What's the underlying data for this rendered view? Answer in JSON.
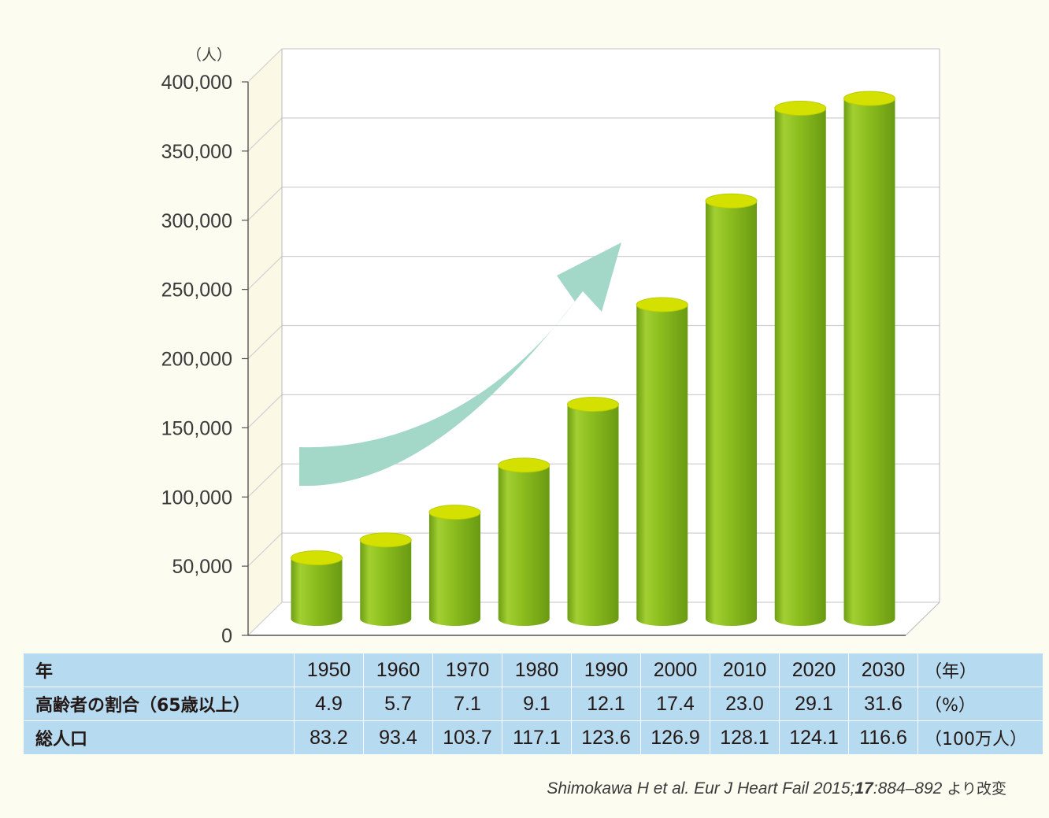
{
  "chart_data": {
    "type": "bar",
    "categories": [
      "1950",
      "1960",
      "1970",
      "1980",
      "1990",
      "2000",
      "2010",
      "2020",
      "2030"
    ],
    "values": [
      44000,
      57000,
      77000,
      111000,
      155000,
      227000,
      302000,
      369000,
      376000
    ],
    "y_unit": "（人）",
    "yticks": [
      "0",
      "50,000",
      "100,000",
      "150,000",
      "200,000",
      "250,000",
      "300,000",
      "350,000",
      "400,000"
    ],
    "ylim": [
      0,
      400000
    ],
    "grid": true,
    "colors": {
      "bar_side": "#8dbf1f",
      "bar_top": "#d4e100",
      "arrow": "#a3d8c9"
    }
  },
  "table": {
    "rows": [
      {
        "label": "年",
        "values": [
          "1950",
          "1960",
          "1970",
          "1980",
          "1990",
          "2000",
          "2010",
          "2020",
          "2030"
        ],
        "unit": "（年）"
      },
      {
        "label": "高齢者の割合（65歳以上）",
        "values": [
          "4.9",
          "5.7",
          "7.1",
          "9.1",
          "12.1",
          "17.4",
          "23.0",
          "29.1",
          "31.6"
        ],
        "unit": "（%）"
      },
      {
        "label": "総人口",
        "values": [
          "83.2",
          "93.4",
          "103.7",
          "117.1",
          "123.6",
          "126.9",
          "128.1",
          "124.1",
          "116.6"
        ],
        "unit": "（100万人）"
      }
    ]
  },
  "citation": {
    "authors": "Shimokawa H et al. Eur J Heart Fail 2015;",
    "volume": "17",
    "pages": ":884–892",
    "suffix": " より改変"
  }
}
